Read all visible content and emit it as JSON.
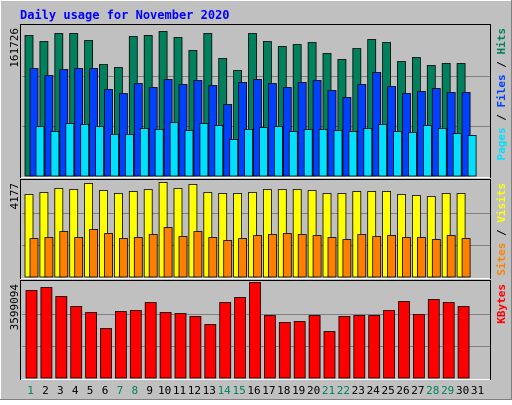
{
  "chart_data": {
    "type": "bar",
    "title": "Daily usage for November 2020",
    "categories": [
      "1",
      "2",
      "3",
      "4",
      "5",
      "6",
      "7",
      "8",
      "9",
      "10",
      "11",
      "12",
      "13",
      "14",
      "15",
      "16",
      "17",
      "18",
      "19",
      "20",
      "21",
      "22",
      "23",
      "24",
      "25",
      "26",
      "27",
      "28",
      "29",
      "30",
      "31"
    ],
    "weekend_days": [
      1,
      7,
      8,
      14,
      15,
      21,
      22,
      28,
      29
    ],
    "panels": [
      {
        "id": "requests",
        "max_label": "161726",
        "ylim": [
          0,
          161726
        ],
        "series": [
          {
            "name": "Hits",
            "color": "#00805c",
            "values": [
              152000,
              146000,
              154000,
              154000,
              147000,
              121000,
              117000,
              151000,
              152000,
              156000,
              150000,
              136000,
              154000,
              127000,
              114000,
              154000,
              146000,
              140000,
              142000,
              145000,
              133000,
              126000,
              138000,
              148000,
              144000,
              124000,
              128000,
              120000,
              122000,
              122000,
              0
            ]
          },
          {
            "name": "Files",
            "color": "#0040ff",
            "values": [
              116000,
              109000,
              115000,
              116000,
              116000,
              94000,
              90000,
              100000,
              96000,
              105000,
              99000,
              104000,
              98000,
              78000,
              101000,
              105000,
              100000,
              96000,
              101000,
              104000,
              93000,
              85000,
              99000,
              112000,
              97000,
              90000,
              92000,
              95000,
              91000,
              91000,
              0
            ]
          },
          {
            "name": "Pages",
            "color": "#00e0ff",
            "values": [
              54000,
              48000,
              57000,
              56000,
              54000,
              45000,
              45000,
              52000,
              51000,
              58000,
              50000,
              57000,
              55000,
              40000,
              51000,
              53000,
              54000,
              48000,
              51000,
              51000,
              50000,
              49000,
              52000,
              56000,
              49000,
              47000,
              55000,
              52000,
              46000,
              44000,
              0
            ]
          }
        ]
      },
      {
        "id": "visitors",
        "max_label": "4177",
        "ylim": [
          0,
          4177
        ],
        "series": [
          {
            "name": "Visits",
            "color": "#ffff00",
            "values": [
              3620,
              3700,
              3880,
              3850,
              4080,
              3800,
              3660,
              3740,
              3840,
              4130,
              3880,
              4040,
              3720,
              3660,
              3640,
              3690,
              3820,
              3820,
              3840,
              3790,
              3660,
              3650,
              3740,
              3730,
              3750,
              3620,
              3550,
              3540,
              3660,
              3660,
              0
            ]
          },
          {
            "name": "Sites",
            "color": "#ff8000",
            "values": [
              1710,
              1720,
              1980,
              1720,
              2100,
              1900,
              1690,
              1740,
              1860,
              2180,
              1800,
              1990,
              1750,
              1590,
              1690,
              1820,
              1870,
              1930,
              1870,
              1840,
              1720,
              1640,
              1860,
              1770,
              1840,
              1720,
              1760,
              1660,
              1840,
              1680,
              0
            ]
          }
        ]
      },
      {
        "id": "volume",
        "max_label": "3599094",
        "ylim": [
          0,
          3599094
        ],
        "series": [
          {
            "name": "KBytes",
            "color": "#ff0000",
            "values": [
              3310000,
              3410000,
              3090000,
              2700000,
              2470000,
              1890000,
              2510000,
              2560000,
              2840000,
              2460000,
              2430000,
              2320000,
              2040000,
              2850000,
              3020000,
              3590000,
              2370000,
              2100000,
              2120000,
              2360000,
              1780000,
              2330000,
              2380000,
              2360000,
              2550000,
              2880000,
              2410000,
              2980000,
              2850000,
              2700000,
              0
            ]
          }
        ]
      }
    ]
  }
}
